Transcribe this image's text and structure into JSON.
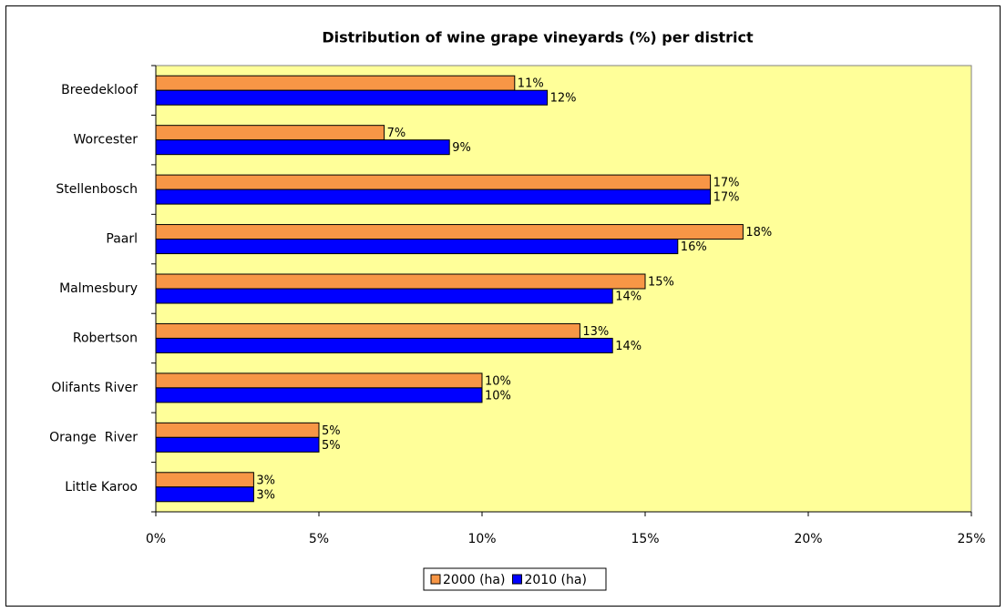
{
  "chart_data": {
    "type": "barh",
    "title": "Distribution of wine grape vineyards (%) per district",
    "categories": [
      "Breedekloof",
      "Worcester",
      "Stellenbosch",
      "Paarl",
      "Malmesbury",
      "Robertson",
      "Olifants River",
      "Orange  River",
      "Little Karoo"
    ],
    "series": [
      {
        "name": "2000 (ha)",
        "color": "#f79646",
        "values": [
          11,
          7,
          17,
          18,
          15,
          13,
          10,
          5,
          3
        ],
        "value_labels": [
          "11%",
          "7%",
          "17%",
          "18%",
          "15%",
          "13%",
          "10%",
          "5%",
          "3%"
        ]
      },
      {
        "name": "2010 (ha)",
        "color": "#0000ff",
        "values": [
          12,
          9,
          17,
          16,
          14,
          14,
          10,
          5,
          3
        ],
        "value_labels": [
          "12%",
          "9%",
          "17%",
          "16%",
          "14%",
          "14%",
          "10%",
          "5%",
          "3%"
        ]
      }
    ],
    "xlim": [
      0,
      25
    ],
    "xticks": [
      {
        "value": 0,
        "label": "0%"
      },
      {
        "value": 5,
        "label": "5%"
      },
      {
        "value": 10,
        "label": "10%"
      },
      {
        "value": 15,
        "label": "15%"
      },
      {
        "value": 20,
        "label": "20%"
      },
      {
        "value": 25,
        "label": "25%"
      }
    ],
    "legend": "bottom"
  }
}
